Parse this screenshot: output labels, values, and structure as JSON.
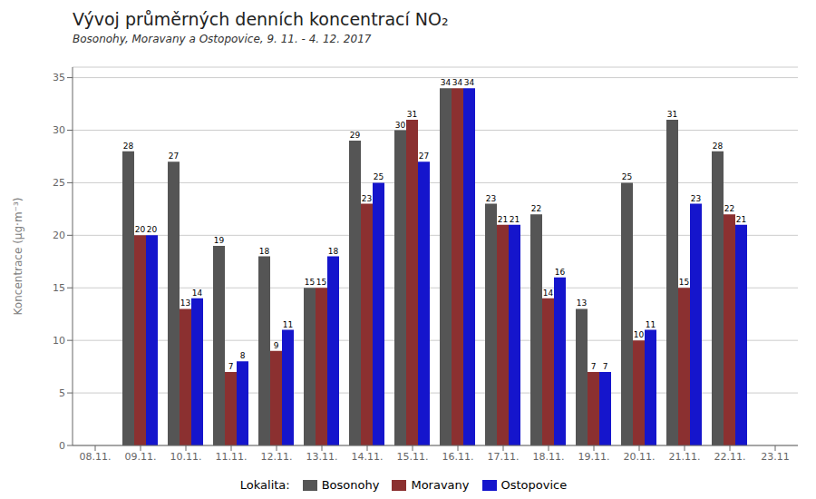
{
  "chart_data": {
    "type": "bar",
    "title": "Vývoj průměrných denních koncentrací NO₂",
    "subtitle": "Bosonohy, Moravany a Ostopovice, 9. 11. - 4. 12. 2017",
    "y_label": "Koncentrace (μg·m⁻³)",
    "legend_title": "Lokalita:",
    "categories": [
      "08.11.",
      "09.11.",
      "10.11.",
      "11.11.",
      "12.11.",
      "13.11.",
      "14.11.",
      "15.11.",
      "16.11.",
      "17.11.",
      "18.11.",
      "19.11.",
      "20.11.",
      "21.11.",
      "22.11.",
      "23.11"
    ],
    "series": [
      {
        "name": "Bosonohy",
        "color": "#555555",
        "values": [
          null,
          28,
          27,
          19,
          18,
          15,
          29,
          30,
          34,
          23,
          22,
          13,
          25,
          31,
          28,
          null
        ]
      },
      {
        "name": "Moravany",
        "color": "#8B3030",
        "values": [
          null,
          20,
          13,
          7,
          9,
          15,
          23,
          31,
          34,
          21,
          14,
          7,
          10,
          15,
          22,
          null
        ]
      },
      {
        "name": "Ostopovice",
        "color": "#1515CC",
        "values": [
          null,
          20,
          14,
          8,
          11,
          18,
          25,
          27,
          34,
          21,
          16,
          7,
          11,
          23,
          21,
          null
        ]
      }
    ],
    "ylim": [
      0,
      36
    ],
    "yticks": [
      0,
      5,
      10,
      15,
      20,
      25,
      30,
      35
    ],
    "grid": true,
    "legend": "bottom",
    "data_labels": true
  }
}
